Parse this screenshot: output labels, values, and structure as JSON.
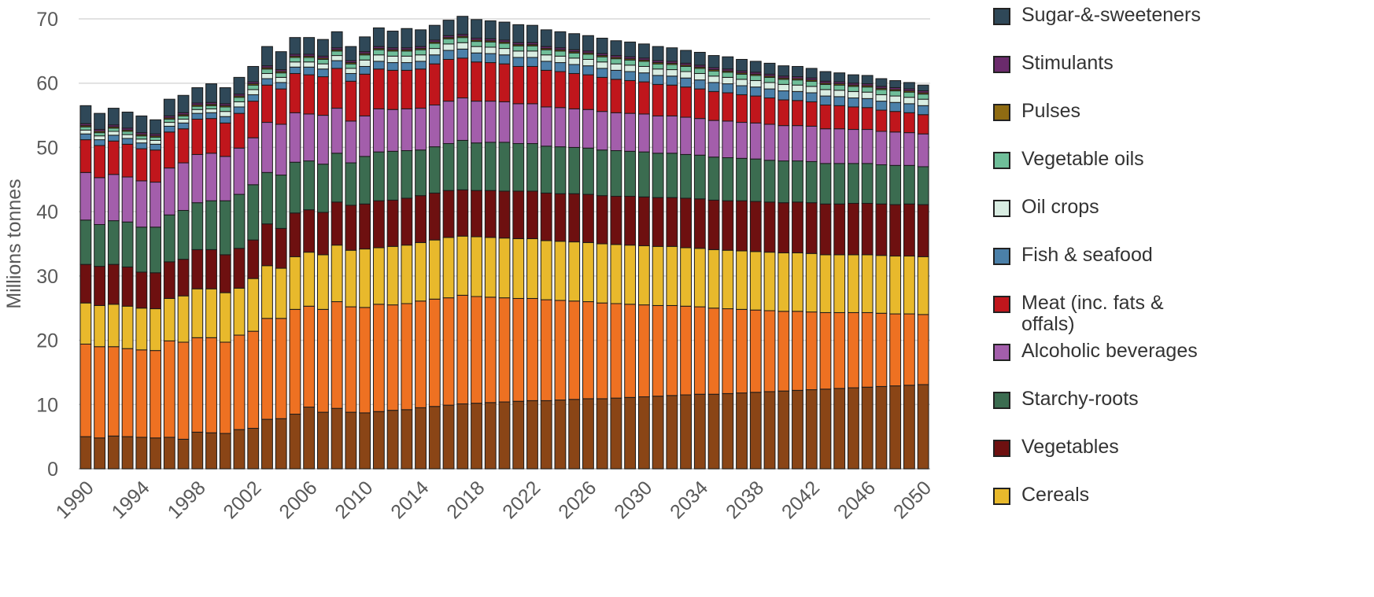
{
  "chart_data": {
    "type": "stacked_bar",
    "y_label": "Millions tonnes",
    "categories": [
      1990,
      null,
      null,
      null,
      1994,
      null,
      null,
      null,
      1998,
      null,
      null,
      null,
      2002,
      null,
      null,
      null,
      2006,
      null,
      null,
      null,
      2010,
      null,
      null,
      null,
      2014,
      null,
      null,
      null,
      2018,
      null,
      null,
      null,
      2022,
      null,
      null,
      null,
      2026,
      null,
      null,
      null,
      2030,
      null,
      null,
      null,
      2034,
      null,
      null,
      null,
      2038,
      null,
      null,
      null,
      2042,
      null,
      null,
      null,
      2046,
      null,
      null,
      null,
      2050
    ],
    "ylim": [
      0,
      70
    ],
    "yticks": [
      0,
      10,
      20,
      30,
      40,
      50,
      60,
      70
    ],
    "grid": true,
    "series": [
      {
        "color": "#8a4516",
        "values": [
          5.0,
          4.8,
          5.1,
          5.0,
          4.9,
          4.8,
          4.9,
          4.6,
          5.7,
          5.6,
          5.5,
          6.1,
          6.3,
          7.7,
          7.8,
          8.5,
          9.6,
          8.8,
          9.4,
          8.8,
          8.7,
          8.9,
          9.1,
          9.2,
          9.5,
          9.7,
          9.9,
          10.1,
          10.2,
          10.3,
          10.4,
          10.5,
          10.6,
          10.6,
          10.7,
          10.8,
          10.9,
          10.9,
          11.0,
          11.1,
          11.2,
          11.3,
          11.4,
          11.5,
          11.6,
          11.6,
          11.7,
          11.8,
          11.9,
          12.0,
          12.1,
          12.2,
          12.3,
          12.4,
          12.5,
          12.6,
          12.7,
          12.8,
          12.9,
          13.0,
          13.1
        ]
      },
      {
        "color": "#ee7122",
        "values": [
          14.4,
          14.2,
          13.9,
          13.7,
          13.6,
          13.6,
          15.0,
          15.1,
          14.7,
          14.8,
          14.2,
          14.7,
          15.1,
          15.7,
          15.6,
          16.3,
          15.7,
          16.0,
          16.6,
          16.4,
          16.4,
          16.7,
          16.4,
          16.5,
          16.6,
          16.7,
          16.7,
          16.9,
          16.6,
          16.4,
          16.2,
          16.0,
          15.9,
          15.7,
          15.5,
          15.3,
          15.1,
          14.9,
          14.7,
          14.5,
          14.3,
          14.1,
          14.0,
          13.8,
          13.6,
          13.4,
          13.2,
          13.0,
          12.8,
          12.6,
          12.4,
          12.3,
          12.1,
          11.9,
          11.8,
          11.7,
          11.6,
          11.4,
          11.2,
          11.1,
          10.9
        ]
      },
      {
        "name": "Cereals",
        "color": "#e8b92c",
        "values": [
          6.4,
          6.4,
          6.6,
          6.6,
          6.5,
          6.5,
          6.6,
          7.2,
          7.6,
          7.6,
          7.7,
          7.3,
          8.2,
          8.2,
          7.8,
          8.2,
          8.4,
          8.5,
          8.8,
          8.8,
          9.1,
          8.8,
          9.1,
          9.1,
          9.1,
          9.2,
          9.4,
          9.2,
          9.3,
          9.3,
          9.3,
          9.3,
          9.3,
          9.2,
          9.2,
          9.2,
          9.2,
          9.2,
          9.2,
          9.2,
          9.2,
          9.2,
          9.2,
          9.1,
          9.1,
          9.1,
          9.1,
          9.1,
          9.1,
          9.1,
          9.1,
          9.1,
          9.1,
          9.0,
          9.0,
          9.0,
          9.0,
          9.0,
          9.0,
          9.0,
          9.0
        ]
      },
      {
        "name": "Vegetables",
        "color": "#6e1010",
        "values": [
          6.0,
          6.1,
          6.2,
          6.1,
          5.6,
          5.6,
          5.7,
          5.7,
          6.1,
          6.1,
          5.9,
          6.2,
          6.0,
          6.5,
          6.2,
          6.8,
          6.6,
          6.6,
          6.7,
          7.0,
          7.0,
          7.3,
          7.2,
          7.3,
          7.3,
          7.3,
          7.3,
          7.2,
          7.2,
          7.3,
          7.3,
          7.4,
          7.4,
          7.4,
          7.4,
          7.5,
          7.5,
          7.5,
          7.5,
          7.6,
          7.6,
          7.6,
          7.6,
          7.7,
          7.7,
          7.7,
          7.7,
          7.8,
          7.8,
          7.8,
          7.8,
          7.9,
          7.9,
          7.9,
          7.9,
          8.0,
          8.0,
          8.0,
          8.0,
          8.1,
          8.1
        ]
      },
      {
        "name": "Starchy-roots",
        "color": "#3b6c50",
        "values": [
          6.9,
          6.5,
          6.8,
          7.0,
          7.0,
          7.1,
          7.3,
          7.6,
          7.3,
          7.6,
          8.4,
          8.4,
          8.6,
          8.0,
          8.3,
          7.9,
          7.6,
          7.5,
          7.6,
          6.6,
          7.4,
          7.6,
          7.6,
          7.4,
          7.1,
          7.2,
          7.3,
          7.7,
          7.4,
          7.5,
          7.6,
          7.4,
          7.4,
          7.3,
          7.3,
          7.2,
          7.2,
          7.1,
          7.1,
          7.0,
          7.0,
          6.9,
          6.9,
          6.8,
          6.8,
          6.7,
          6.7,
          6.6,
          6.6,
          6.5,
          6.5,
          6.4,
          6.4,
          6.3,
          6.3,
          6.2,
          6.2,
          6.1,
          6.1,
          6.0,
          5.9
        ]
      },
      {
        "name": "Alcoholic beverages",
        "color": "#a35eab",
        "values": [
          7.4,
          7.3,
          7.2,
          7.0,
          7.2,
          7.0,
          7.3,
          7.4,
          7.5,
          7.4,
          6.9,
          7.2,
          7.3,
          7.8,
          7.9,
          7.7,
          7.3,
          7.6,
          7.0,
          6.5,
          6.3,
          6.7,
          6.5,
          6.5,
          6.5,
          6.5,
          6.6,
          6.6,
          6.5,
          6.4,
          6.3,
          6.2,
          6.2,
          6.1,
          6.1,
          6.0,
          6.0,
          6.0,
          5.9,
          5.9,
          5.9,
          5.8,
          5.8,
          5.8,
          5.7,
          5.7,
          5.7,
          5.6,
          5.6,
          5.6,
          5.5,
          5.5,
          5.5,
          5.4,
          5.4,
          5.3,
          5.3,
          5.2,
          5.2,
          5.1,
          5.1
        ]
      },
      {
        "name": "Meat (inc. fats & offals)",
        "color": "#c0161c",
        "values": [
          5.1,
          5.0,
          5.2,
          5.1,
          5.0,
          5.0,
          5.6,
          5.3,
          5.5,
          5.4,
          5.2,
          5.4,
          5.7,
          5.8,
          5.5,
          6.1,
          6.1,
          6.0,
          6.2,
          6.2,
          6.5,
          6.2,
          6.1,
          6.0,
          6.1,
          6.4,
          6.5,
          6.2,
          6.1,
          6.0,
          5.9,
          5.8,
          5.8,
          5.7,
          5.6,
          5.5,
          5.4,
          5.3,
          5.2,
          5.1,
          5.0,
          4.9,
          4.8,
          4.7,
          4.6,
          4.5,
          4.4,
          4.3,
          4.2,
          4.1,
          4.0,
          3.9,
          3.8,
          3.7,
          3.6,
          3.5,
          3.4,
          3.3,
          3.2,
          3.1,
          3.0
        ]
      },
      {
        "name": "Fish & seafood",
        "color": "#4b80a9",
        "values": [
          0.9,
          0.9,
          0.9,
          0.9,
          0.9,
          0.9,
          0.9,
          0.9,
          0.9,
          0.9,
          1.0,
          1.0,
          1.0,
          1.0,
          1.0,
          1.0,
          1.2,
          1.2,
          1.2,
          1.2,
          1.2,
          1.2,
          1.2,
          1.2,
          1.2,
          1.4,
          1.4,
          1.4,
          1.4,
          1.4,
          1.4,
          1.4,
          1.4,
          1.4,
          1.4,
          1.4,
          1.4,
          1.4,
          1.4,
          1.4,
          1.4,
          1.4,
          1.4,
          1.4,
          1.4,
          1.4,
          1.4,
          1.4,
          1.4,
          1.4,
          1.4,
          1.4,
          1.4,
          1.4,
          1.4,
          1.4,
          1.4,
          1.4,
          1.4,
          1.4,
          1.4
        ]
      },
      {
        "name": "Oil crops",
        "color": "#d9ede2",
        "values": [
          0.6,
          0.6,
          0.6,
          0.6,
          0.6,
          0.6,
          0.6,
          0.6,
          0.6,
          0.6,
          0.8,
          0.8,
          0.8,
          0.8,
          0.8,
          0.8,
          0.8,
          0.8,
          0.8,
          0.8,
          1.0,
          1.0,
          1.0,
          1.0,
          1.0,
          1.0,
          1.0,
          1.0,
          1.0,
          1.0,
          1.0,
          1.0,
          1.0,
          1.0,
          1.0,
          1.0,
          1.0,
          1.0,
          1.0,
          1.0,
          1.0,
          1.0,
          1.0,
          1.0,
          1.0,
          1.0,
          1.0,
          1.0,
          1.0,
          1.0,
          1.0,
          1.0,
          1.0,
          1.0,
          1.0,
          1.0,
          1.0,
          1.0,
          1.0,
          1.0,
          1.0
        ]
      },
      {
        "name": "Vegetable oils",
        "color": "#6fbe99",
        "values": [
          0.5,
          0.5,
          0.5,
          0.5,
          0.5,
          0.5,
          0.5,
          0.5,
          0.5,
          0.5,
          0.7,
          0.7,
          0.7,
          0.7,
          0.7,
          0.7,
          0.7,
          0.7,
          0.7,
          0.7,
          0.8,
          0.8,
          0.8,
          0.8,
          0.8,
          0.8,
          0.8,
          0.8,
          0.8,
          0.8,
          0.8,
          0.8,
          0.8,
          0.8,
          0.8,
          0.8,
          0.8,
          0.8,
          0.8,
          0.8,
          0.8,
          0.8,
          0.8,
          0.8,
          0.8,
          0.8,
          0.8,
          0.8,
          0.8,
          0.8,
          0.8,
          0.8,
          0.8,
          0.8,
          0.8,
          0.8,
          0.8,
          0.8,
          0.8,
          0.8,
          0.8
        ]
      },
      {
        "name": "Pulses",
        "color": "#8f6b12",
        "values": [
          0.2,
          0.2,
          0.2,
          0.2,
          0.2,
          0.2,
          0.2,
          0.2,
          0.2,
          0.2,
          0.2,
          0.2,
          0.2,
          0.2,
          0.2,
          0.2,
          0.2,
          0.2,
          0.2,
          0.2,
          0.2,
          0.2,
          0.2,
          0.2,
          0.2,
          0.2,
          0.2,
          0.2,
          0.2,
          0.2,
          0.2,
          0.2,
          0.2,
          0.2,
          0.2,
          0.2,
          0.2,
          0.2,
          0.2,
          0.2,
          0.2,
          0.2,
          0.2,
          0.2,
          0.2,
          0.2,
          0.2,
          0.2,
          0.2,
          0.2,
          0.2,
          0.2,
          0.2,
          0.2,
          0.2,
          0.2,
          0.2,
          0.2,
          0.2,
          0.2,
          0.2
        ]
      },
      {
        "name": "Stimulants",
        "color": "#6b2b6c",
        "values": [
          0.3,
          0.3,
          0.3,
          0.3,
          0.3,
          0.3,
          0.3,
          0.3,
          0.3,
          0.3,
          0.3,
          0.3,
          0.3,
          0.3,
          0.3,
          0.3,
          0.3,
          0.3,
          0.3,
          0.3,
          0.3,
          0.3,
          0.3,
          0.3,
          0.3,
          0.3,
          0.3,
          0.3,
          0.3,
          0.3,
          0.3,
          0.3,
          0.3,
          0.3,
          0.3,
          0.3,
          0.3,
          0.3,
          0.3,
          0.3,
          0.3,
          0.3,
          0.3,
          0.3,
          0.3,
          0.3,
          0.3,
          0.3,
          0.3,
          0.3,
          0.3,
          0.3,
          0.3,
          0.3,
          0.3,
          0.3,
          0.3,
          0.3,
          0.3,
          0.3,
          0.3
        ]
      },
      {
        "name": "Sugar-&-sweeteners",
        "color": "#2f4858",
        "values": [
          2.8,
          2.5,
          2.6,
          2.5,
          2.6,
          2.2,
          2.6,
          2.7,
          2.4,
          2.9,
          2.5,
          2.6,
          2.4,
          3.0,
          2.8,
          2.6,
          2.6,
          2.6,
          2.5,
          2.2,
          2.3,
          2.9,
          2.6,
          3.0,
          2.6,
          2.3,
          2.4,
          2.8,
          2.9,
          2.8,
          2.8,
          2.8,
          2.7,
          2.6,
          2.5,
          2.5,
          2.4,
          2.4,
          2.3,
          2.3,
          2.2,
          2.2,
          2.1,
          2.0,
          2.0,
          1.9,
          1.9,
          1.8,
          1.7,
          1.7,
          1.6,
          1.6,
          1.5,
          1.5,
          1.4,
          1.3,
          1.3,
          1.2,
          1.1,
          1.0,
          0.9
        ]
      }
    ]
  }
}
